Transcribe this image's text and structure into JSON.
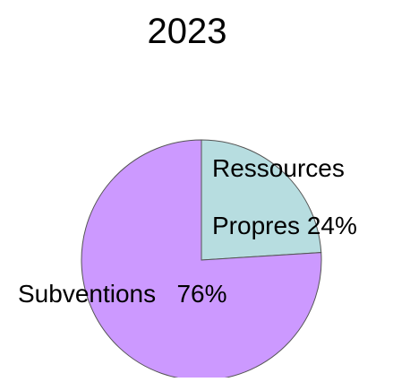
{
  "chart_data": {
    "type": "pie",
    "title": "2023",
    "slices": [
      {
        "label_lines": [
          "Ressources",
          "Propres 24%"
        ],
        "value": 24,
        "color": "#b7dde0"
      },
      {
        "label_lines": [
          "Subventions   76%"
        ],
        "value": 76,
        "color": "#cc99ff"
      }
    ],
    "start_angle_deg": 0,
    "direction": "clockwise",
    "slice_border_color": "#555555"
  }
}
